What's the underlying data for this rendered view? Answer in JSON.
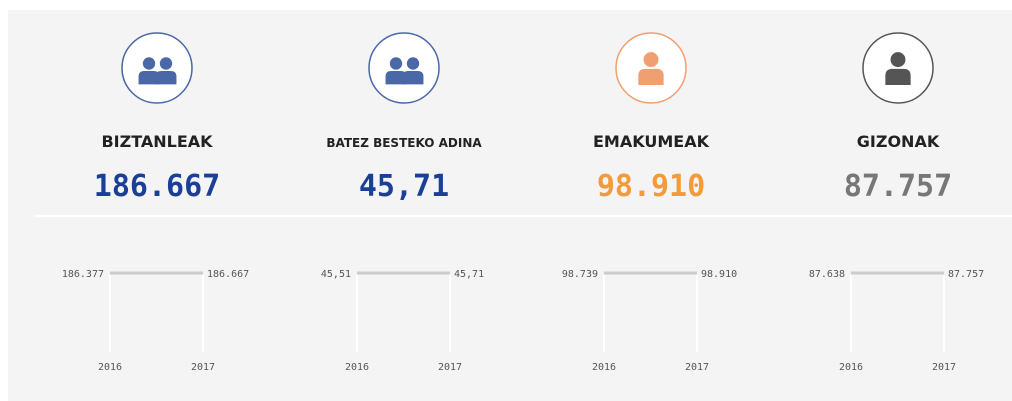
{
  "cards": [
    {
      "label": "BIZTANLEAK",
      "value": "186.667",
      "icon": "group",
      "color": "#1a3f96",
      "icon_color": "#4a67a8",
      "history": {
        "years": [
          "2016",
          "2017"
        ],
        "values": [
          "186.377",
          "186.667"
        ]
      }
    },
    {
      "label": "BATEZ BESTEKO ADINA",
      "value": "45,71",
      "icon": "group",
      "color": "#1a3f96",
      "icon_color": "#4a67a8",
      "history": {
        "years": [
          "2016",
          "2017"
        ],
        "values": [
          "45,51",
          "45,71"
        ]
      }
    },
    {
      "label": "EMAKUMEAK",
      "value": "98.910",
      "icon": "person",
      "color": "#f39a3c",
      "icon_color": "#f0a070",
      "history": {
        "years": [
          "2016",
          "2017"
        ],
        "values": [
          "98.739",
          "98.910"
        ]
      }
    },
    {
      "label": "GIZONAK",
      "value": "87.757",
      "icon": "person",
      "color": "#777777",
      "icon_color": "#555555",
      "history": {
        "years": [
          "2016",
          "2017"
        ],
        "values": [
          "87.638",
          "87.757"
        ]
      }
    }
  ]
}
